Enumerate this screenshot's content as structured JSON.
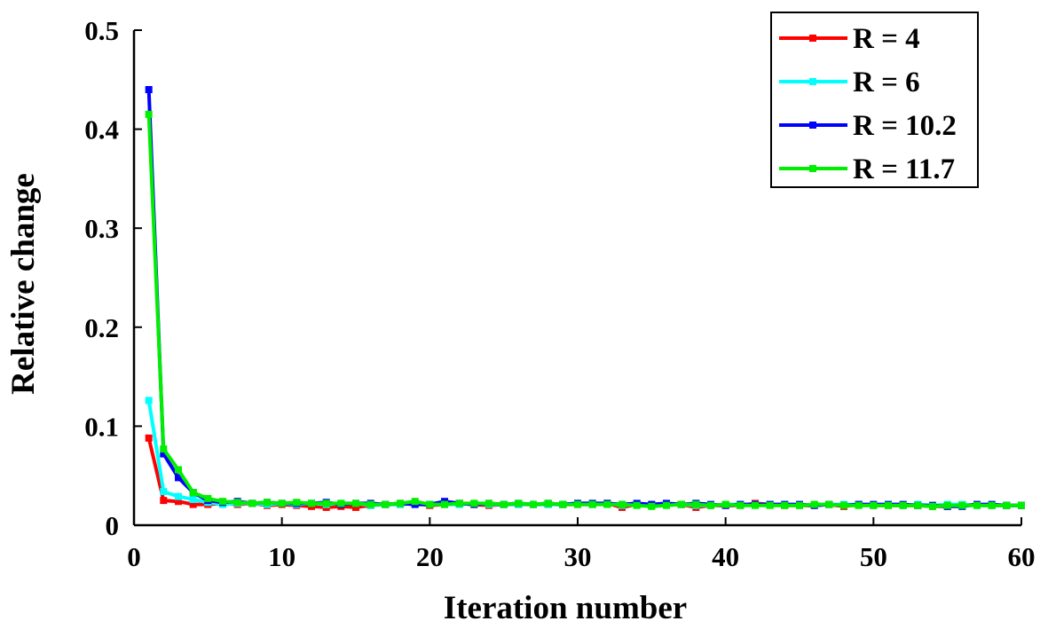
{
  "chart_data": {
    "type": "line",
    "xlabel": "Iteration number",
    "ylabel": "Relative change",
    "xlim": [
      0,
      60
    ],
    "ylim": [
      0,
      0.5
    ],
    "xticks": [
      0,
      10,
      20,
      30,
      40,
      50,
      60
    ],
    "yticks": [
      0,
      0.1,
      0.2,
      0.3,
      0.4,
      0.5
    ],
    "xtick_labels": [
      "0",
      "10",
      "20",
      "30",
      "40",
      "50",
      "60"
    ],
    "ytick_labels": [
      "0",
      "0.1",
      "0.2",
      "0.3",
      "0.4",
      "0.5"
    ],
    "grid": false,
    "legend_position": "top-right",
    "series": [
      {
        "name": "R = 4",
        "color": "#ff0000",
        "x": [
          1,
          2,
          3,
          4,
          5,
          6,
          7,
          8,
          9,
          10,
          11,
          12,
          13,
          14,
          15,
          16,
          17,
          18,
          19,
          20,
          21,
          22,
          23,
          24,
          25,
          26,
          27,
          28,
          29,
          30,
          31,
          32,
          33,
          34,
          35,
          36,
          37,
          38,
          39,
          40,
          41,
          42,
          43,
          44,
          45,
          46,
          47,
          48,
          49,
          50,
          51,
          52,
          53,
          54,
          55,
          56,
          57,
          58,
          59,
          60
        ],
        "y": [
          0.088,
          0.025,
          0.024,
          0.021,
          0.021,
          0.022,
          0.021,
          0.022,
          0.02,
          0.021,
          0.02,
          0.019,
          0.018,
          0.019,
          0.018,
          0.02,
          0.021,
          0.021,
          0.022,
          0.02,
          0.021,
          0.022,
          0.021,
          0.02,
          0.021,
          0.021,
          0.021,
          0.021,
          0.021,
          0.021,
          0.021,
          0.022,
          0.018,
          0.021,
          0.02,
          0.021,
          0.021,
          0.018,
          0.02,
          0.02,
          0.02,
          0.022,
          0.021,
          0.02,
          0.02,
          0.02,
          0.021,
          0.019,
          0.021,
          0.02,
          0.02,
          0.02,
          0.02,
          0.019,
          0.019,
          0.02,
          0.021,
          0.02,
          0.02,
          0.02
        ]
      },
      {
        "name": "R = 6",
        "color": "#00ffff",
        "x": [
          1,
          2,
          3,
          4,
          5,
          6,
          7,
          8,
          9,
          10,
          11,
          12,
          13,
          14,
          15,
          16,
          17,
          18,
          19,
          20,
          21,
          22,
          23,
          24,
          25,
          26,
          27,
          28,
          29,
          30,
          31,
          32,
          33,
          34,
          35,
          36,
          37,
          38,
          39,
          40,
          41,
          42,
          43,
          44,
          45,
          46,
          47,
          48,
          49,
          50,
          51,
          52,
          53,
          54,
          55,
          56,
          57,
          58,
          59,
          60
        ],
        "y": [
          0.126,
          0.034,
          0.029,
          0.026,
          0.023,
          0.021,
          0.022,
          0.022,
          0.021,
          0.022,
          0.021,
          0.022,
          0.021,
          0.022,
          0.022,
          0.02,
          0.021,
          0.021,
          0.022,
          0.021,
          0.021,
          0.021,
          0.022,
          0.021,
          0.021,
          0.021,
          0.021,
          0.021,
          0.021,
          0.022,
          0.021,
          0.022,
          0.02,
          0.021,
          0.021,
          0.021,
          0.021,
          0.02,
          0.02,
          0.021,
          0.021,
          0.021,
          0.021,
          0.021,
          0.02,
          0.021,
          0.021,
          0.021,
          0.021,
          0.02,
          0.021,
          0.02,
          0.021,
          0.02,
          0.021,
          0.021,
          0.02,
          0.02,
          0.02,
          0.02
        ]
      },
      {
        "name": "R = 10.2",
        "color": "#0000ff",
        "x": [
          1,
          2,
          3,
          4,
          5,
          6,
          7,
          8,
          9,
          10,
          11,
          12,
          13,
          14,
          15,
          16,
          17,
          18,
          19,
          20,
          21,
          22,
          23,
          24,
          25,
          26,
          27,
          28,
          29,
          30,
          31,
          32,
          33,
          34,
          35,
          36,
          37,
          38,
          39,
          40,
          41,
          42,
          43,
          44,
          45,
          46,
          47,
          48,
          49,
          50,
          51,
          52,
          53,
          54,
          55,
          56,
          57,
          58,
          59,
          60
        ],
        "y": [
          0.44,
          0.072,
          0.048,
          0.033,
          0.025,
          0.023,
          0.024,
          0.022,
          0.023,
          0.022,
          0.022,
          0.022,
          0.023,
          0.021,
          0.022,
          0.022,
          0.021,
          0.022,
          0.021,
          0.021,
          0.024,
          0.022,
          0.021,
          0.022,
          0.021,
          0.022,
          0.021,
          0.022,
          0.021,
          0.022,
          0.022,
          0.022,
          0.021,
          0.022,
          0.021,
          0.022,
          0.021,
          0.022,
          0.021,
          0.02,
          0.021,
          0.021,
          0.021,
          0.021,
          0.021,
          0.02,
          0.021,
          0.02,
          0.021,
          0.021,
          0.021,
          0.021,
          0.02,
          0.02,
          0.019,
          0.019,
          0.021,
          0.021,
          0.02,
          0.02
        ]
      },
      {
        "name": "R = 11.7",
        "color": "#00ee00",
        "x": [
          1,
          2,
          3,
          4,
          5,
          6,
          7,
          8,
          9,
          10,
          11,
          12,
          13,
          14,
          15,
          16,
          17,
          18,
          19,
          20,
          21,
          22,
          23,
          24,
          25,
          26,
          27,
          28,
          29,
          30,
          31,
          32,
          33,
          34,
          35,
          36,
          37,
          38,
          39,
          40,
          41,
          42,
          43,
          44,
          45,
          46,
          47,
          48,
          49,
          50,
          51,
          52,
          53,
          54,
          55,
          56,
          57,
          58,
          59,
          60
        ],
        "y": [
          0.415,
          0.077,
          0.056,
          0.033,
          0.027,
          0.024,
          0.023,
          0.022,
          0.023,
          0.022,
          0.023,
          0.022,
          0.022,
          0.022,
          0.022,
          0.021,
          0.021,
          0.022,
          0.024,
          0.021,
          0.021,
          0.022,
          0.022,
          0.022,
          0.021,
          0.022,
          0.021,
          0.022,
          0.021,
          0.021,
          0.021,
          0.021,
          0.021,
          0.02,
          0.019,
          0.02,
          0.021,
          0.021,
          0.02,
          0.021,
          0.02,
          0.02,
          0.02,
          0.02,
          0.02,
          0.021,
          0.021,
          0.02,
          0.02,
          0.02,
          0.02,
          0.02,
          0.02,
          0.019,
          0.02,
          0.02,
          0.02,
          0.02,
          0.02,
          0.02
        ]
      }
    ]
  }
}
